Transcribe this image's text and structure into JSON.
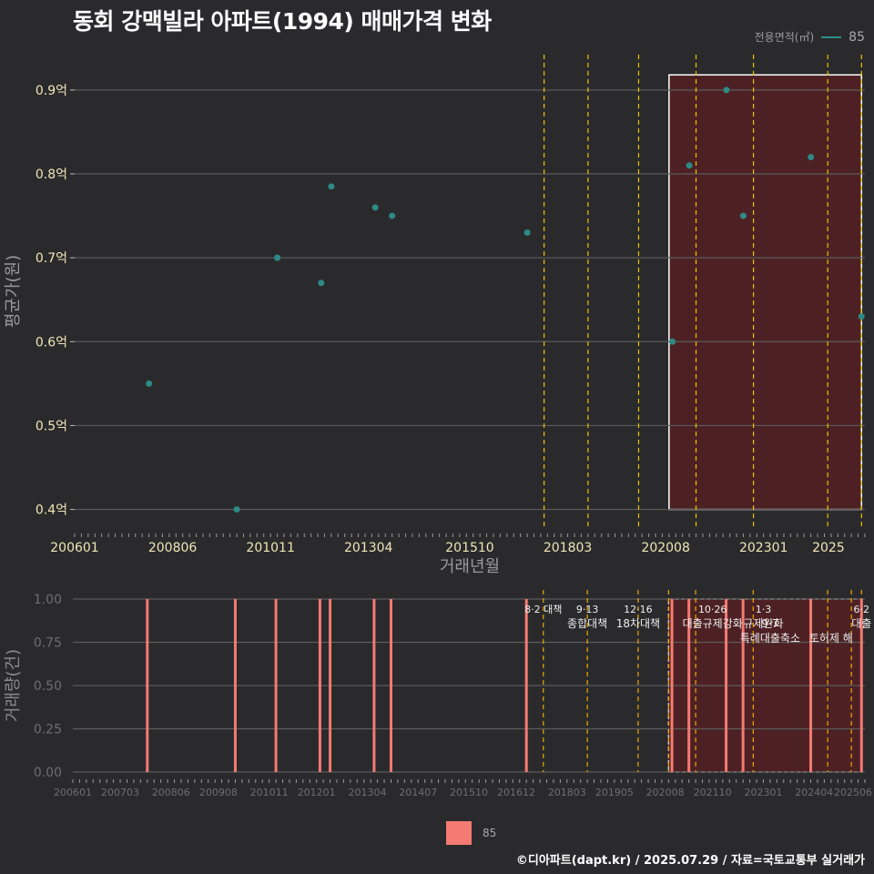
{
  "title": "동회 강맥빌라 아파트(1994) 매매가격 변화",
  "footer": "©디아파트(dapt.kr) / 2025.07.29 / 자료=국토교통부 실거래가",
  "legend_top": {
    "label": "전용면적(㎡)",
    "value": "85",
    "color": "#2a8f8a"
  },
  "legend_bottom": {
    "value": "85",
    "color": "#f47a72"
  },
  "chart_data": [
    {
      "type": "scatter",
      "xlabel": "거래년월",
      "ylabel": "평균가(원)",
      "x_ticks": [
        "200601",
        "200806",
        "201011",
        "201304",
        "201510",
        "201803",
        "202008",
        "202301",
        "2025"
      ],
      "y_ticks": [
        "0.4억",
        "0.5억",
        "0.6억",
        "0.7억",
        "0.8억",
        "0.9억"
      ],
      "ylim": [
        0.38,
        0.94
      ],
      "series": [
        {
          "name": "85",
          "points": [
            {
              "x": "200711",
              "y": 0.55
            },
            {
              "x": "201001",
              "y": 0.4
            },
            {
              "x": "201101",
              "y": 0.7
            },
            {
              "x": "201202",
              "y": 0.67
            },
            {
              "x": "201205",
              "y": 0.785
            },
            {
              "x": "201306",
              "y": 0.76
            },
            {
              "x": "201311",
              "y": 0.75
            },
            {
              "x": "201703",
              "y": 0.73
            },
            {
              "x": "202010",
              "y": 0.6
            },
            {
              "x": "202103",
              "y": 0.81
            },
            {
              "x": "202202",
              "y": 0.9
            },
            {
              "x": "202207",
              "y": 0.75
            },
            {
              "x": "202403",
              "y": 0.82
            },
            {
              "x": "202506",
              "y": 0.63
            }
          ]
        }
      ],
      "policy_lines": [
        "201708",
        "201809",
        "201912",
        "202105",
        "202210",
        "202408",
        "202506"
      ],
      "highlight_range": [
        "202009",
        "202506"
      ]
    },
    {
      "type": "bar",
      "ylabel": "거래량(건)",
      "x_ticks": [
        "200601",
        "200703",
        "200806",
        "200908",
        "201011",
        "201201",
        "201304",
        "201407",
        "201510",
        "201612",
        "201803",
        "201905",
        "202008",
        "202110",
        "202301",
        "202404",
        "202506"
      ],
      "y_ticks": [
        "0.00",
        "0.25",
        "0.50",
        "0.75",
        "1.00"
      ],
      "ylim": [
        0,
        1.0
      ],
      "series": [
        {
          "name": "85",
          "bars": [
            {
              "x": "200711",
              "value": 1
            },
            {
              "x": "201001",
              "value": 1
            },
            {
              "x": "201101",
              "value": 1
            },
            {
              "x": "201202",
              "value": 1
            },
            {
              "x": "201205",
              "value": 1
            },
            {
              "x": "201306",
              "value": 1
            },
            {
              "x": "201311",
              "value": 1
            },
            {
              "x": "201703",
              "value": 1
            },
            {
              "x": "202010",
              "value": 1
            },
            {
              "x": "202103",
              "value": 1
            },
            {
              "x": "202202",
              "value": 1
            },
            {
              "x": "202207",
              "value": 1
            },
            {
              "x": "202403",
              "value": 1
            },
            {
              "x": "202506",
              "value": 1
            }
          ]
        }
      ],
      "policy_lines": [
        "201708",
        "201809",
        "201912",
        "202009",
        "202105",
        "202210",
        "202408",
        "202503",
        "202506"
      ],
      "annotations": [
        {
          "x": "201708",
          "lines": [
            "8·2 대책"
          ]
        },
        {
          "x": "201809",
          "lines": [
            "9·13",
            "종합대책"
          ]
        },
        {
          "x": "201912",
          "lines": [
            "12·16",
            "18차대책"
          ]
        },
        {
          "x": "202110",
          "lines": [
            "10·26",
            "대출규제강화"
          ]
        },
        {
          "x": "202301",
          "lines": [
            "1·3",
            "규제완화"
          ]
        },
        {
          "x": "202303",
          "lines": [
            "",
            "9·7"
          ]
        },
        {
          "x": "202303",
          "lines": [
            "",
            "",
            "특례대출축소"
          ]
        },
        {
          "x": "202409",
          "lines": [
            "",
            "",
            "토허제 해"
          ]
        },
        {
          "x": "202506",
          "lines": [
            "6·2",
            "대출"
          ]
        }
      ],
      "highlight_range": [
        "202009",
        "202506"
      ]
    }
  ]
}
